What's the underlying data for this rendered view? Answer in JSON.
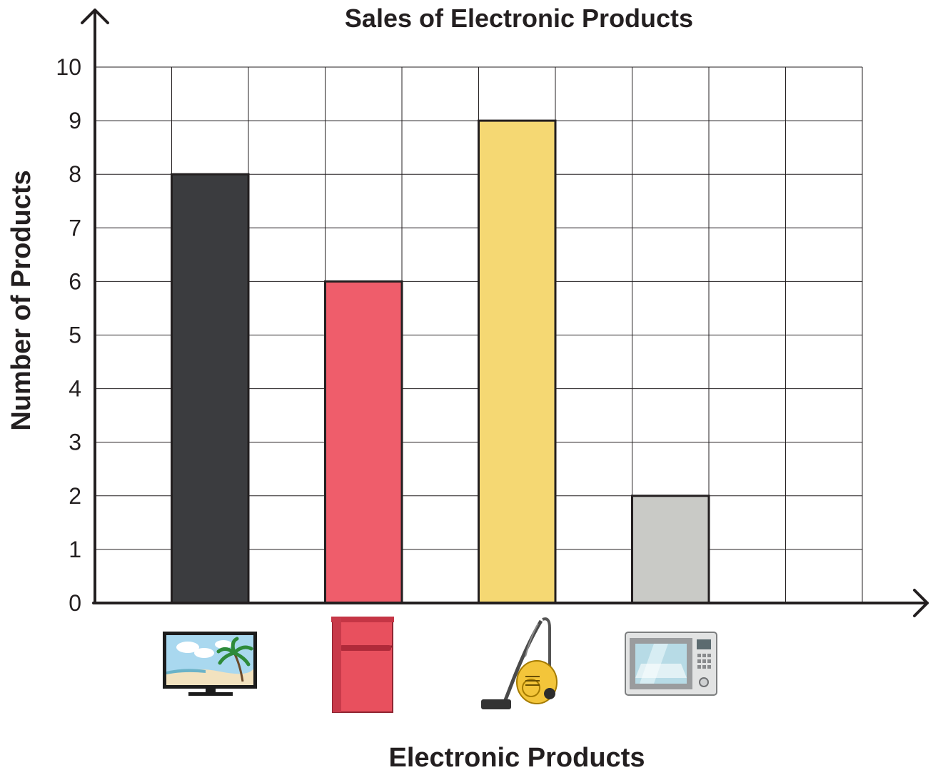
{
  "chart_data": {
    "type": "bar",
    "title": "Sales of Electronic Products",
    "xlabel": "Electronic Products",
    "ylabel": "Number of Products",
    "ylim": [
      0,
      10
    ],
    "yticks": [
      "0",
      "1",
      "2",
      "3",
      "4",
      "5",
      "6",
      "7",
      "8",
      "9",
      "10"
    ],
    "grid": true,
    "categories": [
      "television",
      "refrigerator",
      "vacuum cleaner",
      "microwave oven"
    ],
    "category_icons": [
      "tv-icon",
      "fridge-icon",
      "vacuum-icon",
      "microwave-icon"
    ],
    "values": [
      8,
      6,
      9,
      2
    ],
    "colors": [
      "#3b3c3f",
      "#ef5d6b",
      "#f5d873",
      "#c9cac6"
    ]
  }
}
